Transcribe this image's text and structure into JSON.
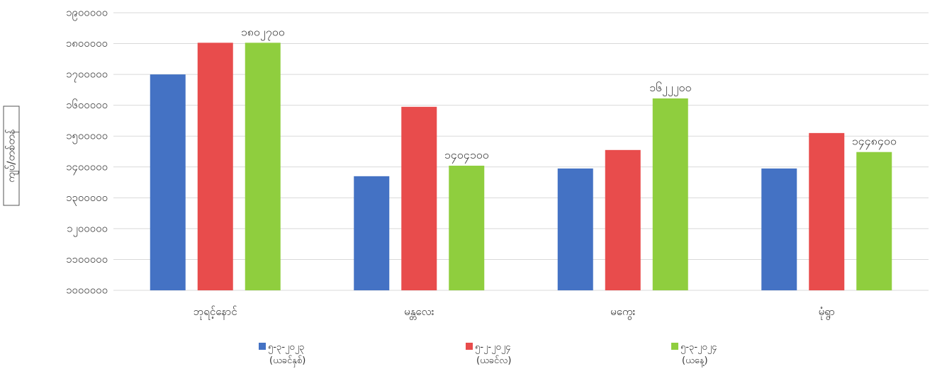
{
  "chart_data": {
    "type": "bar",
    "ylabel": "ကျပ်/တစ်တန်",
    "ylim": [
      1000000,
      1900000
    ],
    "yticks": [
      {
        "value": 1000000,
        "label": "၁၀၀၀၀၀၀"
      },
      {
        "value": 1100000,
        "label": "၁၁၀၀၀၀၀"
      },
      {
        "value": 1200000,
        "label": "၁၂၀၀၀၀၀"
      },
      {
        "value": 1300000,
        "label": "၁၃၀၀၀၀၀"
      },
      {
        "value": 1400000,
        "label": "၁၄၀၀၀၀၀"
      },
      {
        "value": 1500000,
        "label": "၁၅၀၀၀၀၀"
      },
      {
        "value": 1600000,
        "label": "၁၆၀၀၀၀၀"
      },
      {
        "value": 1700000,
        "label": "၁၇၀၀၀၀၀"
      },
      {
        "value": 1800000,
        "label": "၁၈၀၀၀၀၀"
      },
      {
        "value": 1900000,
        "label": "၁၉၀၀၀၀၀"
      }
    ],
    "categories": [
      "ဘုရင့်နောင်",
      "မန္တလေး",
      "မကွေး",
      "မုံရွာ"
    ],
    "series": [
      {
        "name": "၅-၃-၂၀၂၃",
        "name2": "(ယခင်နှစ်)",
        "color": "#4472c4",
        "values": [
          1700000,
          1370000,
          1395000,
          1395000
        ],
        "labels": [
          "",
          "",
          "",
          ""
        ]
      },
      {
        "name": "၅-၂-၂၀၂၄",
        "name2": "(ယခင်လ)",
        "color": "#e84c4c",
        "values": [
          1802700,
          1595000,
          1455000,
          1510000
        ],
        "labels": [
          "",
          "",
          "",
          ""
        ]
      },
      {
        "name": "၅-၃-၂၀၂၄",
        "name2": "(ယနေ့)",
        "color": "#8fce3e",
        "values": [
          1802700,
          1404100,
          1622200,
          1448400
        ],
        "labels": [
          "၁၈၀၂၇၀၀",
          "၁၄၀၄၁၀၀",
          "၁၆၂၂၂၀၀",
          "၁၄၄၈၄၀၀"
        ]
      }
    ],
    "grid": true,
    "legend": "bottom"
  }
}
